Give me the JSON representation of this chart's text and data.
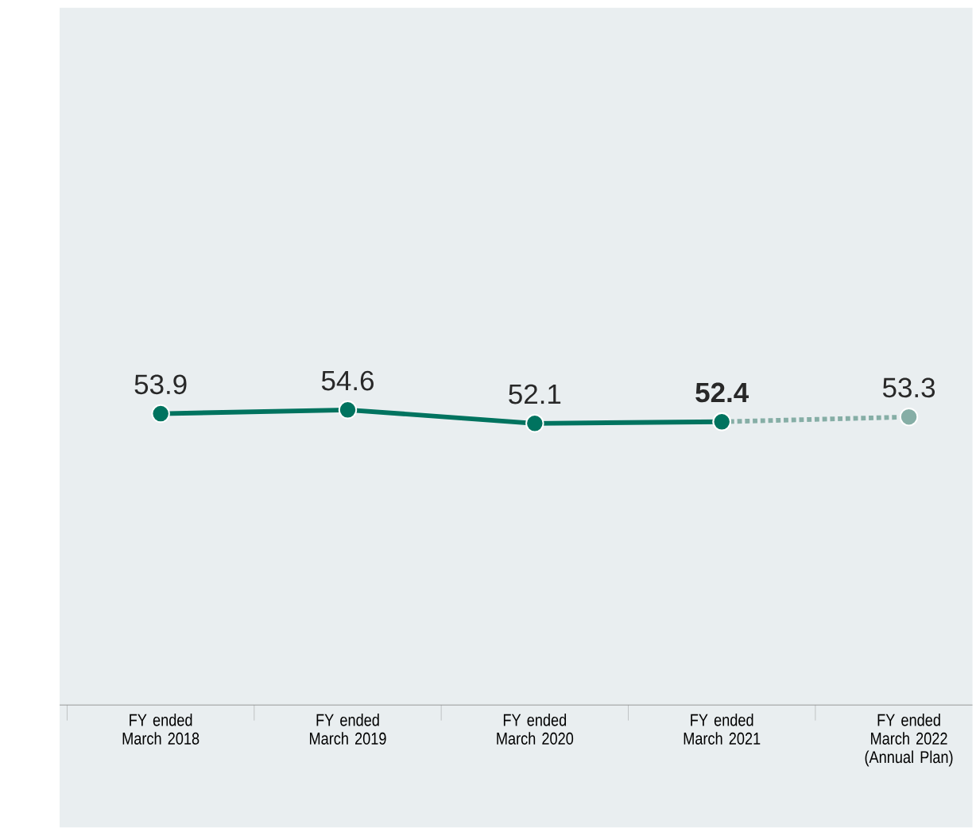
{
  "chart_data": {
    "type": "line",
    "categories": [
      "FY ended March 2018",
      "FY ended March 2019",
      "FY ended March 2020",
      "FY ended March 2021",
      "FY ended March 2022 (Annual Plan)"
    ],
    "ylim": [
      0,
      129
    ],
    "tick_labels": "x",
    "marker": "circle",
    "series": [
      {
        "color": "#86aea6",
        "line_style": "dotted",
        "values": [
          null,
          null,
          null,
          52.4,
          53.3
        ],
        "value_labels": [
          null,
          null,
          null,
          null,
          "53.3"
        ]
      },
      {
        "color": "#00735f",
        "line_style": "solid",
        "values": [
          53.9,
          54.6,
          52.1,
          52.4,
          null
        ],
        "value_labels": [
          "53.9",
          "54.6",
          "52.1",
          "**52.4**",
          null
        ]
      }
    ]
  }
}
